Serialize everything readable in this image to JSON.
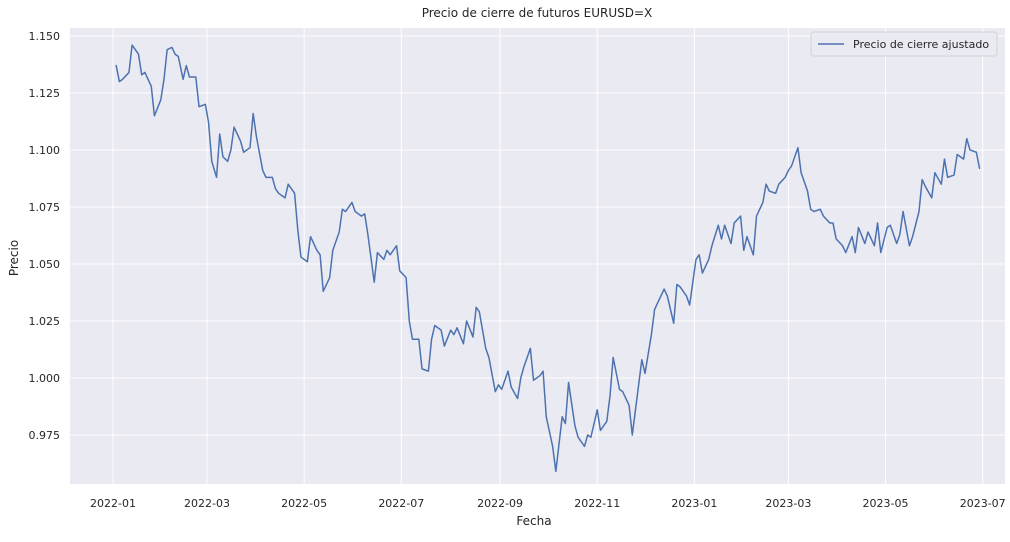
{
  "chart_data": {
    "type": "line",
    "title": "Precio de cierre de futuros EURUSD=X",
    "xlabel": "Fecha",
    "ylabel": "Precio",
    "xlim": [
      "2021-12-05",
      "2023-07-15"
    ],
    "ylim": [
      0.9535,
      1.1535
    ],
    "grid": true,
    "legend_position": "top-right",
    "style": {
      "background": "#EAEAF2",
      "grid_color": "#FFFFFF",
      "line_color": "#4C72B0"
    },
    "x_ticks": [
      {
        "date": "2022-01-01",
        "label": "2022-01"
      },
      {
        "date": "2022-03-01",
        "label": "2022-03"
      },
      {
        "date": "2022-05-01",
        "label": "2022-05"
      },
      {
        "date": "2022-07-01",
        "label": "2022-07"
      },
      {
        "date": "2022-09-01",
        "label": "2022-09"
      },
      {
        "date": "2022-11-01",
        "label": "2022-11"
      },
      {
        "date": "2023-01-01",
        "label": "2023-01"
      },
      {
        "date": "2023-03-01",
        "label": "2023-03"
      },
      {
        "date": "2023-05-01",
        "label": "2023-05"
      },
      {
        "date": "2023-07-01",
        "label": "2023-07"
      }
    ],
    "y_ticks": [
      {
        "value": 0.975,
        "label": "0.975"
      },
      {
        "value": 1.0,
        "label": "1.000"
      },
      {
        "value": 1.025,
        "label": "1.025"
      },
      {
        "value": 1.05,
        "label": "1.050"
      },
      {
        "value": 1.075,
        "label": "1.075"
      },
      {
        "value": 1.1,
        "label": "1.100"
      },
      {
        "value": 1.125,
        "label": "1.125"
      },
      {
        "value": 1.15,
        "label": "1.150"
      }
    ],
    "series": [
      {
        "name": "Precio de cierre ajustado",
        "color": "#4C72B0",
        "points": [
          [
            "2022-01-03",
            1.137
          ],
          [
            "2022-01-05",
            1.13
          ],
          [
            "2022-01-07",
            1.131
          ],
          [
            "2022-01-11",
            1.134
          ],
          [
            "2022-01-13",
            1.146
          ],
          [
            "2022-01-17",
            1.142
          ],
          [
            "2022-01-19",
            1.133
          ],
          [
            "2022-01-21",
            1.134
          ],
          [
            "2022-01-25",
            1.128
          ],
          [
            "2022-01-27",
            1.115
          ],
          [
            "2022-01-31",
            1.122
          ],
          [
            "2022-02-02",
            1.131
          ],
          [
            "2022-02-04",
            1.144
          ],
          [
            "2022-02-07",
            1.145
          ],
          [
            "2022-02-09",
            1.142
          ],
          [
            "2022-02-11",
            1.141
          ],
          [
            "2022-02-14",
            1.131
          ],
          [
            "2022-02-16",
            1.137
          ],
          [
            "2022-02-18",
            1.132
          ],
          [
            "2022-02-22",
            1.132
          ],
          [
            "2022-02-24",
            1.119
          ],
          [
            "2022-02-28",
            1.12
          ],
          [
            "2022-03-02",
            1.112
          ],
          [
            "2022-03-04",
            1.095
          ],
          [
            "2022-03-07",
            1.088
          ],
          [
            "2022-03-09",
            1.107
          ],
          [
            "2022-03-11",
            1.097
          ],
          [
            "2022-03-14",
            1.095
          ],
          [
            "2022-03-16",
            1.1
          ],
          [
            "2022-03-18",
            1.11
          ],
          [
            "2022-03-22",
            1.104
          ],
          [
            "2022-03-24",
            1.099
          ],
          [
            "2022-03-28",
            1.101
          ],
          [
            "2022-03-30",
            1.116
          ],
          [
            "2022-04-01",
            1.106
          ],
          [
            "2022-04-05",
            1.091
          ],
          [
            "2022-04-07",
            1.088
          ],
          [
            "2022-04-11",
            1.088
          ],
          [
            "2022-04-13",
            1.083
          ],
          [
            "2022-04-15",
            1.081
          ],
          [
            "2022-04-19",
            1.079
          ],
          [
            "2022-04-21",
            1.085
          ],
          [
            "2022-04-25",
            1.081
          ],
          [
            "2022-04-27",
            1.065
          ],
          [
            "2022-04-29",
            1.053
          ],
          [
            "2022-05-03",
            1.051
          ],
          [
            "2022-05-05",
            1.062
          ],
          [
            "2022-05-09",
            1.056
          ],
          [
            "2022-05-11",
            1.054
          ],
          [
            "2022-05-13",
            1.038
          ],
          [
            "2022-05-17",
            1.044
          ],
          [
            "2022-05-19",
            1.056
          ],
          [
            "2022-05-23",
            1.064
          ],
          [
            "2022-05-25",
            1.074
          ],
          [
            "2022-05-27",
            1.073
          ],
          [
            "2022-05-31",
            1.077
          ],
          [
            "2022-06-02",
            1.073
          ],
          [
            "2022-06-06",
            1.071
          ],
          [
            "2022-06-08",
            1.072
          ],
          [
            "2022-06-10",
            1.063
          ],
          [
            "2022-06-14",
            1.042
          ],
          [
            "2022-06-16",
            1.055
          ],
          [
            "2022-06-20",
            1.052
          ],
          [
            "2022-06-22",
            1.056
          ],
          [
            "2022-06-24",
            1.054
          ],
          [
            "2022-06-28",
            1.058
          ],
          [
            "2022-06-30",
            1.047
          ],
          [
            "2022-07-04",
            1.044
          ],
          [
            "2022-07-06",
            1.025
          ],
          [
            "2022-07-08",
            1.017
          ],
          [
            "2022-07-12",
            1.017
          ],
          [
            "2022-07-14",
            1.004
          ],
          [
            "2022-07-18",
            1.003
          ],
          [
            "2022-07-20",
            1.017
          ],
          [
            "2022-07-22",
            1.023
          ],
          [
            "2022-07-26",
            1.021
          ],
          [
            "2022-07-28",
            1.014
          ],
          [
            "2022-08-01",
            1.021
          ],
          [
            "2022-08-03",
            1.019
          ],
          [
            "2022-08-05",
            1.022
          ],
          [
            "2022-08-09",
            1.015
          ],
          [
            "2022-08-11",
            1.025
          ],
          [
            "2022-08-15",
            1.018
          ],
          [
            "2022-08-17",
            1.031
          ],
          [
            "2022-08-19",
            1.029
          ],
          [
            "2022-08-23",
            1.013
          ],
          [
            "2022-08-25",
            1.009
          ],
          [
            "2022-08-29",
            0.994
          ],
          [
            "2022-08-31",
            0.997
          ],
          [
            "2022-09-02",
            0.995
          ],
          [
            "2022-09-06",
            1.003
          ],
          [
            "2022-09-08",
            0.996
          ],
          [
            "2022-09-12",
            0.991
          ],
          [
            "2022-09-14",
            1.0
          ],
          [
            "2022-09-16",
            1.005
          ],
          [
            "2022-09-20",
            1.013
          ],
          [
            "2022-09-22",
            0.999
          ],
          [
            "2022-09-26",
            1.001
          ],
          [
            "2022-09-28",
            1.003
          ],
          [
            "2022-09-30",
            0.983
          ],
          [
            "2022-10-04",
            0.97
          ],
          [
            "2022-10-06",
            0.959
          ],
          [
            "2022-10-10",
            0.983
          ],
          [
            "2022-10-12",
            0.98
          ],
          [
            "2022-10-14",
            0.998
          ],
          [
            "2022-10-18",
            0.979
          ],
          [
            "2022-10-20",
            0.974
          ],
          [
            "2022-10-24",
            0.97
          ],
          [
            "2022-10-26",
            0.975
          ],
          [
            "2022-10-28",
            0.974
          ],
          [
            "2022-11-01",
            0.986
          ],
          [
            "2022-11-03",
            0.977
          ],
          [
            "2022-11-07",
            0.981
          ],
          [
            "2022-11-09",
            0.992
          ],
          [
            "2022-11-11",
            1.009
          ],
          [
            "2022-11-15",
            0.995
          ],
          [
            "2022-11-17",
            0.994
          ],
          [
            "2022-11-21",
            0.988
          ],
          [
            "2022-11-23",
            0.975
          ],
          [
            "2022-11-25",
            0.986
          ],
          [
            "2022-11-29",
            1.008
          ],
          [
            "2022-12-01",
            1.002
          ],
          [
            "2022-12-05",
            1.019
          ],
          [
            "2022-12-07",
            1.03
          ],
          [
            "2022-12-09",
            1.033
          ],
          [
            "2022-12-13",
            1.039
          ],
          [
            "2022-12-15",
            1.036
          ],
          [
            "2022-12-19",
            1.024
          ],
          [
            "2022-12-21",
            1.041
          ],
          [
            "2022-12-23",
            1.04
          ],
          [
            "2022-12-27",
            1.036
          ],
          [
            "2022-12-29",
            1.032
          ],
          [
            "2023-01-02",
            1.052
          ],
          [
            "2023-01-04",
            1.054
          ],
          [
            "2023-01-06",
            1.046
          ],
          [
            "2023-01-10",
            1.052
          ],
          [
            "2023-01-12",
            1.058
          ],
          [
            "2023-01-16",
            1.067
          ],
          [
            "2023-01-18",
            1.061
          ],
          [
            "2023-01-20",
            1.067
          ],
          [
            "2023-01-24",
            1.059
          ],
          [
            "2023-01-26",
            1.068
          ],
          [
            "2023-01-30",
            1.071
          ],
          [
            "2023-02-01",
            1.056
          ],
          [
            "2023-02-03",
            1.062
          ],
          [
            "2023-02-07",
            1.054
          ],
          [
            "2023-02-09",
            1.071
          ],
          [
            "2023-02-13",
            1.077
          ],
          [
            "2023-02-15",
            1.085
          ],
          [
            "2023-02-17",
            1.082
          ],
          [
            "2023-02-21",
            1.081
          ],
          [
            "2023-02-23",
            1.085
          ],
          [
            "2023-02-27",
            1.088
          ],
          [
            "2023-03-01",
            1.091
          ],
          [
            "2023-03-03",
            1.093
          ],
          [
            "2023-03-07",
            1.101
          ],
          [
            "2023-03-09",
            1.09
          ],
          [
            "2023-03-13",
            1.082
          ],
          [
            "2023-03-15",
            1.074
          ],
          [
            "2023-03-17",
            1.073
          ],
          [
            "2023-03-21",
            1.074
          ],
          [
            "2023-03-23",
            1.071
          ],
          [
            "2023-03-27",
            1.068
          ],
          [
            "2023-03-29",
            1.068
          ],
          [
            "2023-03-31",
            1.061
          ],
          [
            "2023-04-04",
            1.058
          ],
          [
            "2023-04-06",
            1.055
          ],
          [
            "2023-04-10",
            1.062
          ],
          [
            "2023-04-12",
            1.055
          ],
          [
            "2023-04-14",
            1.066
          ],
          [
            "2023-04-18",
            1.059
          ],
          [
            "2023-04-20",
            1.064
          ],
          [
            "2023-04-24",
            1.058
          ],
          [
            "2023-04-26",
            1.068
          ],
          [
            "2023-04-28",
            1.055
          ],
          [
            "2023-05-02",
            1.066
          ],
          [
            "2023-05-04",
            1.067
          ],
          [
            "2023-05-08",
            1.059
          ],
          [
            "2023-05-10",
            1.063
          ],
          [
            "2023-05-12",
            1.073
          ],
          [
            "2023-05-16",
            1.058
          ],
          [
            "2023-05-18",
            1.062
          ],
          [
            "2023-05-22",
            1.073
          ],
          [
            "2023-05-24",
            1.087
          ],
          [
            "2023-05-26",
            1.084
          ],
          [
            "2023-05-30",
            1.079
          ],
          [
            "2023-06-01",
            1.09
          ],
          [
            "2023-06-05",
            1.085
          ],
          [
            "2023-06-07",
            1.096
          ],
          [
            "2023-06-09",
            1.088
          ],
          [
            "2023-06-13",
            1.089
          ],
          [
            "2023-06-15",
            1.098
          ],
          [
            "2023-06-19",
            1.096
          ],
          [
            "2023-06-21",
            1.105
          ],
          [
            "2023-06-23",
            1.1
          ],
          [
            "2023-06-27",
            1.099
          ],
          [
            "2023-06-29",
            1.092
          ]
        ]
      }
    ]
  }
}
